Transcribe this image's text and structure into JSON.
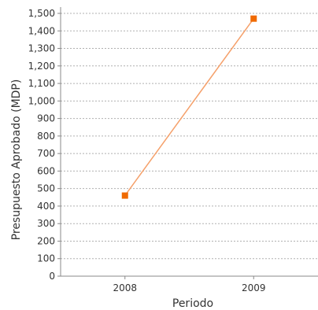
{
  "chart_data": {
    "type": "line",
    "title": "",
    "xlabel": "Periodo",
    "ylabel": "Presupuesto Aprobado (MDP)",
    "categories": [
      "2008",
      "2009"
    ],
    "series": [
      {
        "values": [
          460,
          1470
        ],
        "color": "#f06a00",
        "line_color": "#f5a06a"
      }
    ],
    "ylim": [
      0,
      1500
    ],
    "y_ticks": [
      0,
      100,
      200,
      300,
      400,
      500,
      600,
      700,
      800,
      900,
      1000,
      1100,
      1200,
      1300,
      1400,
      1500
    ],
    "y_tick_labels": [
      "0",
      "100",
      "200",
      "300",
      "400",
      "500",
      "600",
      "700",
      "800",
      "900",
      "1,000",
      "1,100",
      "1,200",
      "1,300",
      "1,400",
      "1,500"
    ],
    "grid": true,
    "legend": "none"
  }
}
